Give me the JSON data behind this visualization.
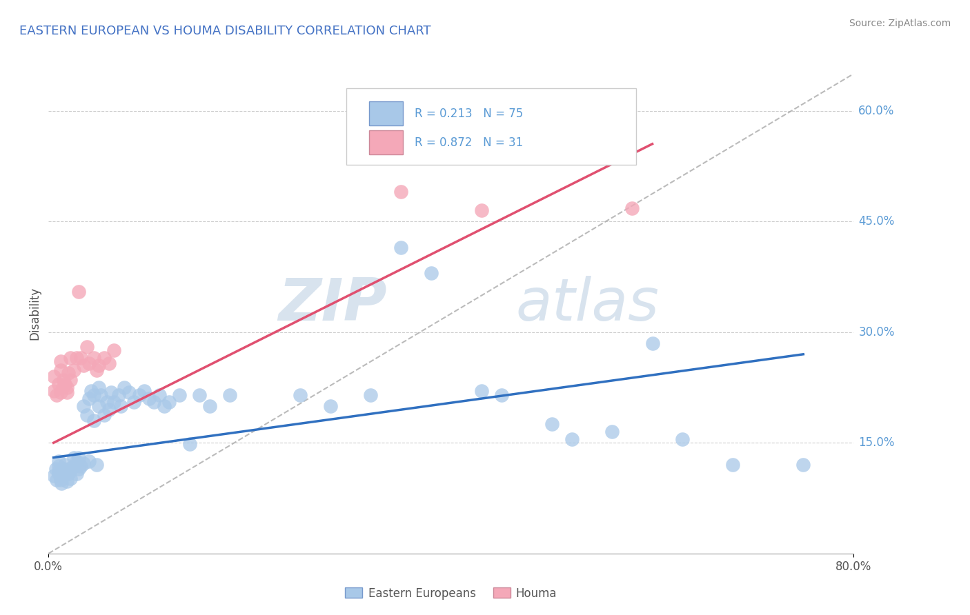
{
  "title": "EASTERN EUROPEAN VS HOUMA DISABILITY CORRELATION CHART",
  "source": "Source: ZipAtlas.com",
  "ylabel": "Disability",
  "xlim": [
    0.0,
    0.8
  ],
  "ylim": [
    0.0,
    0.65
  ],
  "watermark_zip": "ZIP",
  "watermark_atlas": "atlas",
  "legend_blue_r": "0.213",
  "legend_blue_n": "75",
  "legend_pink_r": "0.872",
  "legend_pink_n": "31",
  "legend_blue_label": "Eastern Europeans",
  "legend_pink_label": "Houma",
  "blue_scatter_color": "#a8c8e8",
  "pink_scatter_color": "#f4a8b8",
  "blue_line_color": "#3070c0",
  "pink_line_color": "#e05070",
  "gray_line_color": "#aaaaaa",
  "grid_color": "#cccccc",
  "ytick_color": "#5b9bd5",
  "title_color": "#4472c4",
  "legend_text_color": "#5b9bd5",
  "blue_scatter": [
    [
      0.005,
      0.105
    ],
    [
      0.007,
      0.115
    ],
    [
      0.008,
      0.1
    ],
    [
      0.01,
      0.108
    ],
    [
      0.01,
      0.118
    ],
    [
      0.01,
      0.125
    ],
    [
      0.01,
      0.112
    ],
    [
      0.012,
      0.1
    ],
    [
      0.012,
      0.108
    ],
    [
      0.013,
      0.095
    ],
    [
      0.014,
      0.11
    ],
    [
      0.015,
      0.105
    ],
    [
      0.015,
      0.115
    ],
    [
      0.016,
      0.12
    ],
    [
      0.018,
      0.098
    ],
    [
      0.018,
      0.11
    ],
    [
      0.02,
      0.108
    ],
    [
      0.02,
      0.115
    ],
    [
      0.022,
      0.102
    ],
    [
      0.022,
      0.112
    ],
    [
      0.025,
      0.13
    ],
    [
      0.025,
      0.118
    ],
    [
      0.028,
      0.108
    ],
    [
      0.028,
      0.125
    ],
    [
      0.03,
      0.115
    ],
    [
      0.03,
      0.13
    ],
    [
      0.032,
      0.118
    ],
    [
      0.035,
      0.122
    ],
    [
      0.035,
      0.2
    ],
    [
      0.038,
      0.188
    ],
    [
      0.04,
      0.21
    ],
    [
      0.04,
      0.125
    ],
    [
      0.042,
      0.22
    ],
    [
      0.045,
      0.18
    ],
    [
      0.045,
      0.215
    ],
    [
      0.048,
      0.12
    ],
    [
      0.05,
      0.225
    ],
    [
      0.05,
      0.2
    ],
    [
      0.052,
      0.215
    ],
    [
      0.055,
      0.188
    ],
    [
      0.058,
      0.205
    ],
    [
      0.06,
      0.195
    ],
    [
      0.062,
      0.218
    ],
    [
      0.065,
      0.205
    ],
    [
      0.07,
      0.215
    ],
    [
      0.072,
      0.2
    ],
    [
      0.075,
      0.225
    ],
    [
      0.08,
      0.218
    ],
    [
      0.085,
      0.205
    ],
    [
      0.09,
      0.215
    ],
    [
      0.095,
      0.22
    ],
    [
      0.1,
      0.21
    ],
    [
      0.105,
      0.205
    ],
    [
      0.11,
      0.215
    ],
    [
      0.115,
      0.2
    ],
    [
      0.12,
      0.205
    ],
    [
      0.13,
      0.215
    ],
    [
      0.14,
      0.148
    ],
    [
      0.15,
      0.215
    ],
    [
      0.16,
      0.2
    ],
    [
      0.18,
      0.215
    ],
    [
      0.25,
      0.215
    ],
    [
      0.28,
      0.2
    ],
    [
      0.32,
      0.215
    ],
    [
      0.35,
      0.415
    ],
    [
      0.38,
      0.38
    ],
    [
      0.43,
      0.22
    ],
    [
      0.45,
      0.215
    ],
    [
      0.5,
      0.175
    ],
    [
      0.52,
      0.155
    ],
    [
      0.56,
      0.165
    ],
    [
      0.6,
      0.285
    ],
    [
      0.63,
      0.155
    ],
    [
      0.68,
      0.12
    ],
    [
      0.75,
      0.12
    ]
  ],
  "pink_scatter": [
    [
      0.005,
      0.22
    ],
    [
      0.005,
      0.24
    ],
    [
      0.008,
      0.215
    ],
    [
      0.01,
      0.23
    ],
    [
      0.012,
      0.218
    ],
    [
      0.012,
      0.248
    ],
    [
      0.012,
      0.26
    ],
    [
      0.014,
      0.225
    ],
    [
      0.015,
      0.235
    ],
    [
      0.016,
      0.23
    ],
    [
      0.018,
      0.225
    ],
    [
      0.018,
      0.218
    ],
    [
      0.02,
      0.245
    ],
    [
      0.022,
      0.235
    ],
    [
      0.022,
      0.265
    ],
    [
      0.025,
      0.248
    ],
    [
      0.028,
      0.265
    ],
    [
      0.03,
      0.355
    ],
    [
      0.032,
      0.265
    ],
    [
      0.035,
      0.255
    ],
    [
      0.038,
      0.28
    ],
    [
      0.04,
      0.258
    ],
    [
      0.045,
      0.265
    ],
    [
      0.048,
      0.248
    ],
    [
      0.05,
      0.255
    ],
    [
      0.055,
      0.265
    ],
    [
      0.06,
      0.258
    ],
    [
      0.065,
      0.275
    ],
    [
      0.35,
      0.49
    ],
    [
      0.43,
      0.465
    ],
    [
      0.58,
      0.468
    ]
  ],
  "blue_line_x": [
    0.005,
    0.75
  ],
  "blue_line_y": [
    0.13,
    0.27
  ],
  "pink_line_x": [
    0.005,
    0.6
  ],
  "pink_line_y": [
    0.15,
    0.555
  ],
  "diag_line_x": [
    0.0,
    0.8
  ],
  "diag_line_y": [
    0.0,
    0.65
  ]
}
